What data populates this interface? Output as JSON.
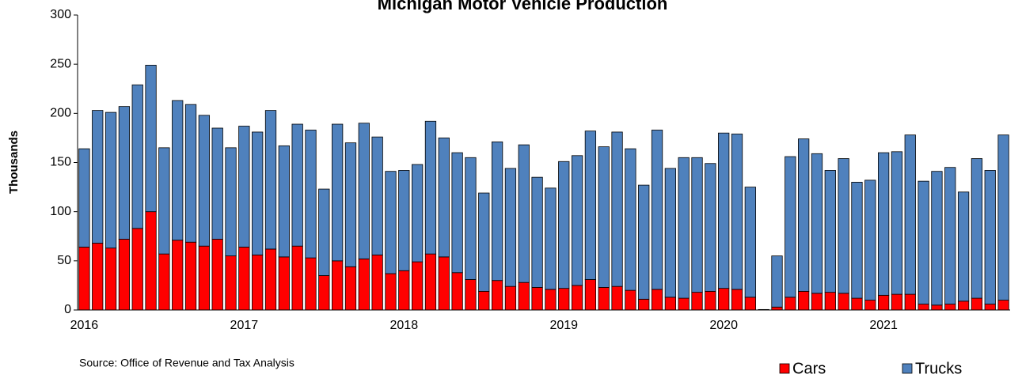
{
  "chart_data": {
    "type": "stacked-bar",
    "title": "Michigan Motor Vehicle Production",
    "y_label": "Thousands",
    "source": "Source: Office of Revenue and Tax Analysis",
    "categories": [
      "2016",
      null,
      null,
      null,
      null,
      null,
      null,
      null,
      null,
      null,
      null,
      null,
      "2017",
      null,
      null,
      null,
      null,
      null,
      null,
      null,
      null,
      null,
      null,
      null,
      "2018",
      null,
      null,
      null,
      null,
      null,
      null,
      null,
      null,
      null,
      null,
      null,
      "2019",
      null,
      null,
      null,
      null,
      null,
      null,
      null,
      null,
      null,
      null,
      null,
      "2020",
      null,
      null,
      null,
      null,
      null,
      null,
      null,
      null,
      null,
      null,
      null,
      "2021",
      null,
      null,
      null,
      null,
      null,
      null,
      null,
      null,
      null
    ],
    "series": [
      {
        "name": "Cars",
        "color": "#ff0000",
        "values": [
          64,
          68,
          63,
          72,
          83,
          100,
          57,
          71,
          69,
          65,
          72,
          55,
          64,
          56,
          62,
          54,
          65,
          53,
          35,
          50,
          44,
          52,
          56,
          37,
          40,
          49,
          57,
          54,
          38,
          31,
          19,
          30,
          24,
          28,
          23,
          21,
          22,
          25,
          31,
          23,
          24,
          20,
          11,
          21,
          13,
          12,
          18,
          19,
          22,
          21,
          13,
          0,
          3,
          13,
          19,
          17,
          18,
          17,
          12,
          10,
          15,
          16,
          16,
          6,
          5,
          6,
          9,
          12,
          6,
          10
        ]
      },
      {
        "name": "Trucks",
        "color": "#4f81bd",
        "values": [
          100,
          135,
          138,
          135,
          146,
          149,
          108,
          142,
          140,
          133,
          113,
          110,
          123,
          125,
          141,
          113,
          124,
          130,
          88,
          139,
          126,
          138,
          120,
          104,
          102,
          99,
          135,
          121,
          122,
          124,
          100,
          141,
          120,
          140,
          112,
          103,
          129,
          132,
          151,
          143,
          157,
          144,
          116,
          162,
          131,
          143,
          137,
          130,
          158,
          158,
          112,
          0.5,
          52,
          143,
          155,
          142,
          124,
          137,
          118,
          122,
          145,
          145,
          162,
          125,
          136,
          139,
          111,
          142,
          136,
          168
        ]
      }
    ],
    "ylim": [
      0,
      300
    ],
    "yticks": [
      0,
      50,
      100,
      150,
      200,
      250,
      300
    ],
    "grid": false,
    "legend": "bottom-right"
  }
}
